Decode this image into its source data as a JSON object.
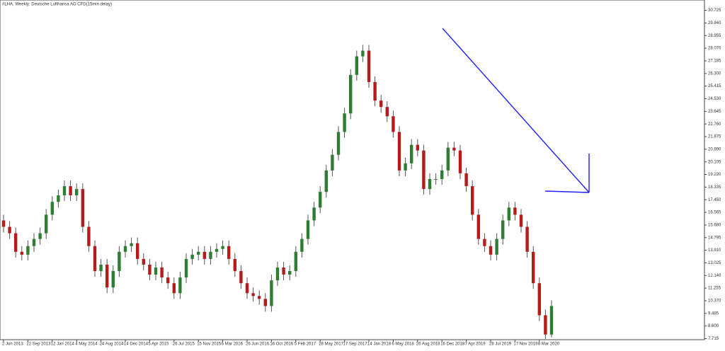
{
  "chart_data": {
    "type": "candlestick",
    "title": "#LHA, Weekly:  Deutsche Lufthansa AG CFD(15min delay)",
    "categories": [
      "2 Jun 2013",
      null,
      null,
      null,
      "22 Sep 2013",
      null,
      null,
      null,
      "12 Jan 2014",
      null,
      null,
      null,
      "4 May 2014",
      null,
      null,
      null,
      "24 Aug 2014",
      null,
      null,
      null,
      "14 Dec 2014",
      null,
      null,
      null,
      "5 Apr 2015",
      null,
      null,
      null,
      "26 Jul 2015",
      null,
      null,
      null,
      "15 Nov 2015",
      null,
      null,
      null,
      "6 Mar 2016",
      null,
      null,
      null,
      "26 Jun 2016",
      null,
      null,
      null,
      "16 Oct 2016",
      null,
      null,
      null,
      "5 Feb 2017",
      null,
      null,
      null,
      "28 May 2017",
      null,
      null,
      null,
      "17 Sep 2017",
      null,
      null,
      null,
      "14 Jan 2018",
      null,
      null,
      null,
      "6 May 2018",
      null,
      null,
      null,
      "26 Aug 2018",
      null,
      null,
      null,
      "16 Dec 2018",
      null,
      null,
      null,
      "7 Apr 2019",
      null,
      null,
      null,
      "28 Jul 2019",
      null,
      null,
      null,
      "17 Nov 2019",
      null,
      null,
      null,
      "8 Mar 2020",
      null,
      null
    ],
    "open": [
      16.0,
      15.55,
      15.1,
      13.8,
      13.6,
      14.2,
      14.7,
      15.1,
      16.4,
      17.3,
      17.76,
      18.4,
      17.76,
      18.2,
      15.55,
      14.2,
      12.45,
      12.9,
      11.3,
      12.45,
      13.8,
      14.2,
      14.4,
      13.3,
      12.9,
      12.2,
      12.7,
      12.0,
      11.6,
      10.9,
      12.0,
      13.3,
      13.6,
      13.8,
      13.3,
      13.8,
      14.0,
      14.2,
      13.3,
      12.45,
      11.6,
      10.9,
      10.7,
      10.5,
      10.0,
      11.8,
      12.7,
      12.2,
      12.45,
      13.8,
      14.7,
      16.0,
      16.9,
      18.0,
      19.5,
      20.6,
      22.2,
      23.5,
      26.2,
      27.5,
      27.9,
      25.7,
      24.4,
      23.95,
      23.3,
      22.2,
      19.5,
      20.0,
      21.3,
      20.9,
      18.2,
      18.9,
      18.9,
      19.5,
      21.1,
      20.9,
      19.3,
      18.4,
      16.4,
      14.7,
      14.2,
      13.6,
      14.7,
      16.0,
      16.9,
      16.4,
      15.55,
      13.8,
      11.6,
      9.35,
      8.0
    ],
    "high": [
      16.4,
      15.95,
      15.5,
      14.2,
      14.6,
      15.1,
      15.5,
      16.8,
      17.7,
      18.16,
      18.8,
      18.8,
      18.6,
      18.6,
      15.95,
      14.6,
      13.3,
      13.3,
      12.85,
      14.2,
      14.6,
      14.8,
      14.8,
      13.7,
      13.3,
      13.1,
      13.1,
      12.4,
      12.0,
      12.4,
      13.7,
      14.0,
      14.2,
      14.2,
      14.2,
      14.4,
      14.6,
      14.6,
      13.7,
      12.85,
      12.0,
      11.3,
      11.1,
      10.9,
      12.2,
      13.1,
      13.1,
      12.85,
      14.2,
      15.1,
      16.4,
      17.3,
      18.4,
      19.9,
      21.0,
      22.6,
      23.9,
      26.6,
      27.9,
      28.3,
      28.3,
      26.1,
      24.8,
      24.35,
      23.7,
      22.6,
      20.4,
      21.7,
      21.7,
      21.3,
      19.3,
      19.3,
      19.9,
      21.5,
      21.5,
      21.3,
      19.7,
      18.8,
      16.8,
      15.1,
      14.6,
      15.1,
      16.4,
      17.3,
      17.3,
      16.8,
      15.95,
      14.2,
      12.0,
      9.75,
      10.4
    ],
    "low": [
      15.15,
      14.7,
      13.4,
      13.2,
      13.2,
      13.8,
      14.3,
      14.7,
      16.0,
      16.9,
      17.36,
      17.36,
      17.36,
      15.15,
      13.8,
      12.05,
      12.05,
      10.9,
      10.9,
      12.05,
      13.4,
      13.8,
      12.9,
      12.5,
      11.8,
      11.8,
      11.6,
      11.2,
      10.5,
      10.5,
      11.6,
      12.9,
      13.2,
      12.9,
      12.9,
      13.4,
      13.6,
      12.9,
      12.05,
      11.2,
      10.5,
      10.3,
      10.1,
      9.6,
      9.6,
      11.4,
      11.8,
      11.8,
      12.05,
      13.4,
      14.3,
      15.6,
      16.5,
      17.6,
      19.1,
      20.2,
      21.8,
      23.1,
      25.8,
      27.1,
      25.3,
      24.0,
      23.55,
      22.9,
      21.8,
      19.1,
      19.1,
      19.6,
      20.5,
      17.8,
      17.8,
      18.5,
      18.5,
      19.1,
      20.5,
      18.9,
      18.0,
      16.0,
      14.3,
      13.8,
      13.2,
      13.2,
      14.3,
      15.6,
      16.0,
      15.15,
      13.4,
      11.2,
      8.95,
      7.7,
      7.8
    ],
    "close": [
      15.55,
      15.1,
      13.8,
      13.6,
      14.2,
      14.7,
      15.1,
      16.4,
      17.3,
      17.76,
      18.4,
      17.76,
      18.2,
      15.55,
      14.2,
      12.45,
      12.9,
      11.3,
      12.45,
      13.8,
      14.2,
      14.4,
      13.3,
      12.9,
      12.2,
      12.7,
      12.0,
      11.6,
      10.9,
      12.0,
      13.3,
      13.6,
      13.8,
      13.3,
      13.8,
      14.0,
      14.2,
      13.3,
      12.45,
      11.6,
      10.9,
      10.7,
      10.5,
      10.0,
      11.8,
      12.7,
      12.2,
      12.45,
      13.8,
      14.7,
      16.0,
      16.9,
      18.0,
      19.5,
      20.6,
      22.2,
      23.5,
      26.2,
      27.5,
      27.9,
      25.7,
      24.4,
      23.95,
      23.3,
      22.2,
      19.5,
      20.0,
      21.3,
      20.9,
      18.2,
      18.9,
      18.9,
      19.5,
      21.1,
      20.9,
      19.3,
      18.4,
      16.4,
      14.7,
      14.2,
      13.6,
      14.7,
      16.0,
      16.9,
      16.4,
      15.55,
      13.8,
      11.6,
      9.35,
      8.0,
      10.0
    ],
    "up_color": "#2e7d32",
    "down_color": "#b71c1c",
    "ylim": [
      7.64,
      31.4
    ],
    "yticks": [
      30.725,
      {
        "value": 29.84,
        "label": "29.840"
      },
      28.955,
      {
        "value": 28.07,
        "label": "28.070"
      },
      27.185,
      {
        "value": 26.3,
        "label": "26.300"
      },
      25.415,
      {
        "value": 24.53,
        "label": "24.530"
      },
      23.645,
      {
        "value": 22.76,
        "label": "22.760"
      },
      21.875,
      {
        "value": 20.99,
        "label": "20.990"
      },
      20.105,
      {
        "value": 19.22,
        "label": "19.220"
      },
      18.335,
      {
        "value": 17.45,
        "label": "17.450"
      },
      16.565,
      {
        "value": 15.68,
        "label": "15.680"
      },
      14.795,
      {
        "value": 13.91,
        "label": "13.910"
      },
      13.025,
      {
        "value": 12.14,
        "label": "12.140"
      },
      11.255,
      {
        "value": 10.37,
        "label": "10.370"
      },
      9.485,
      {
        "value": 8.6,
        "label": "8.600"
      },
      7.715
    ]
  }
}
